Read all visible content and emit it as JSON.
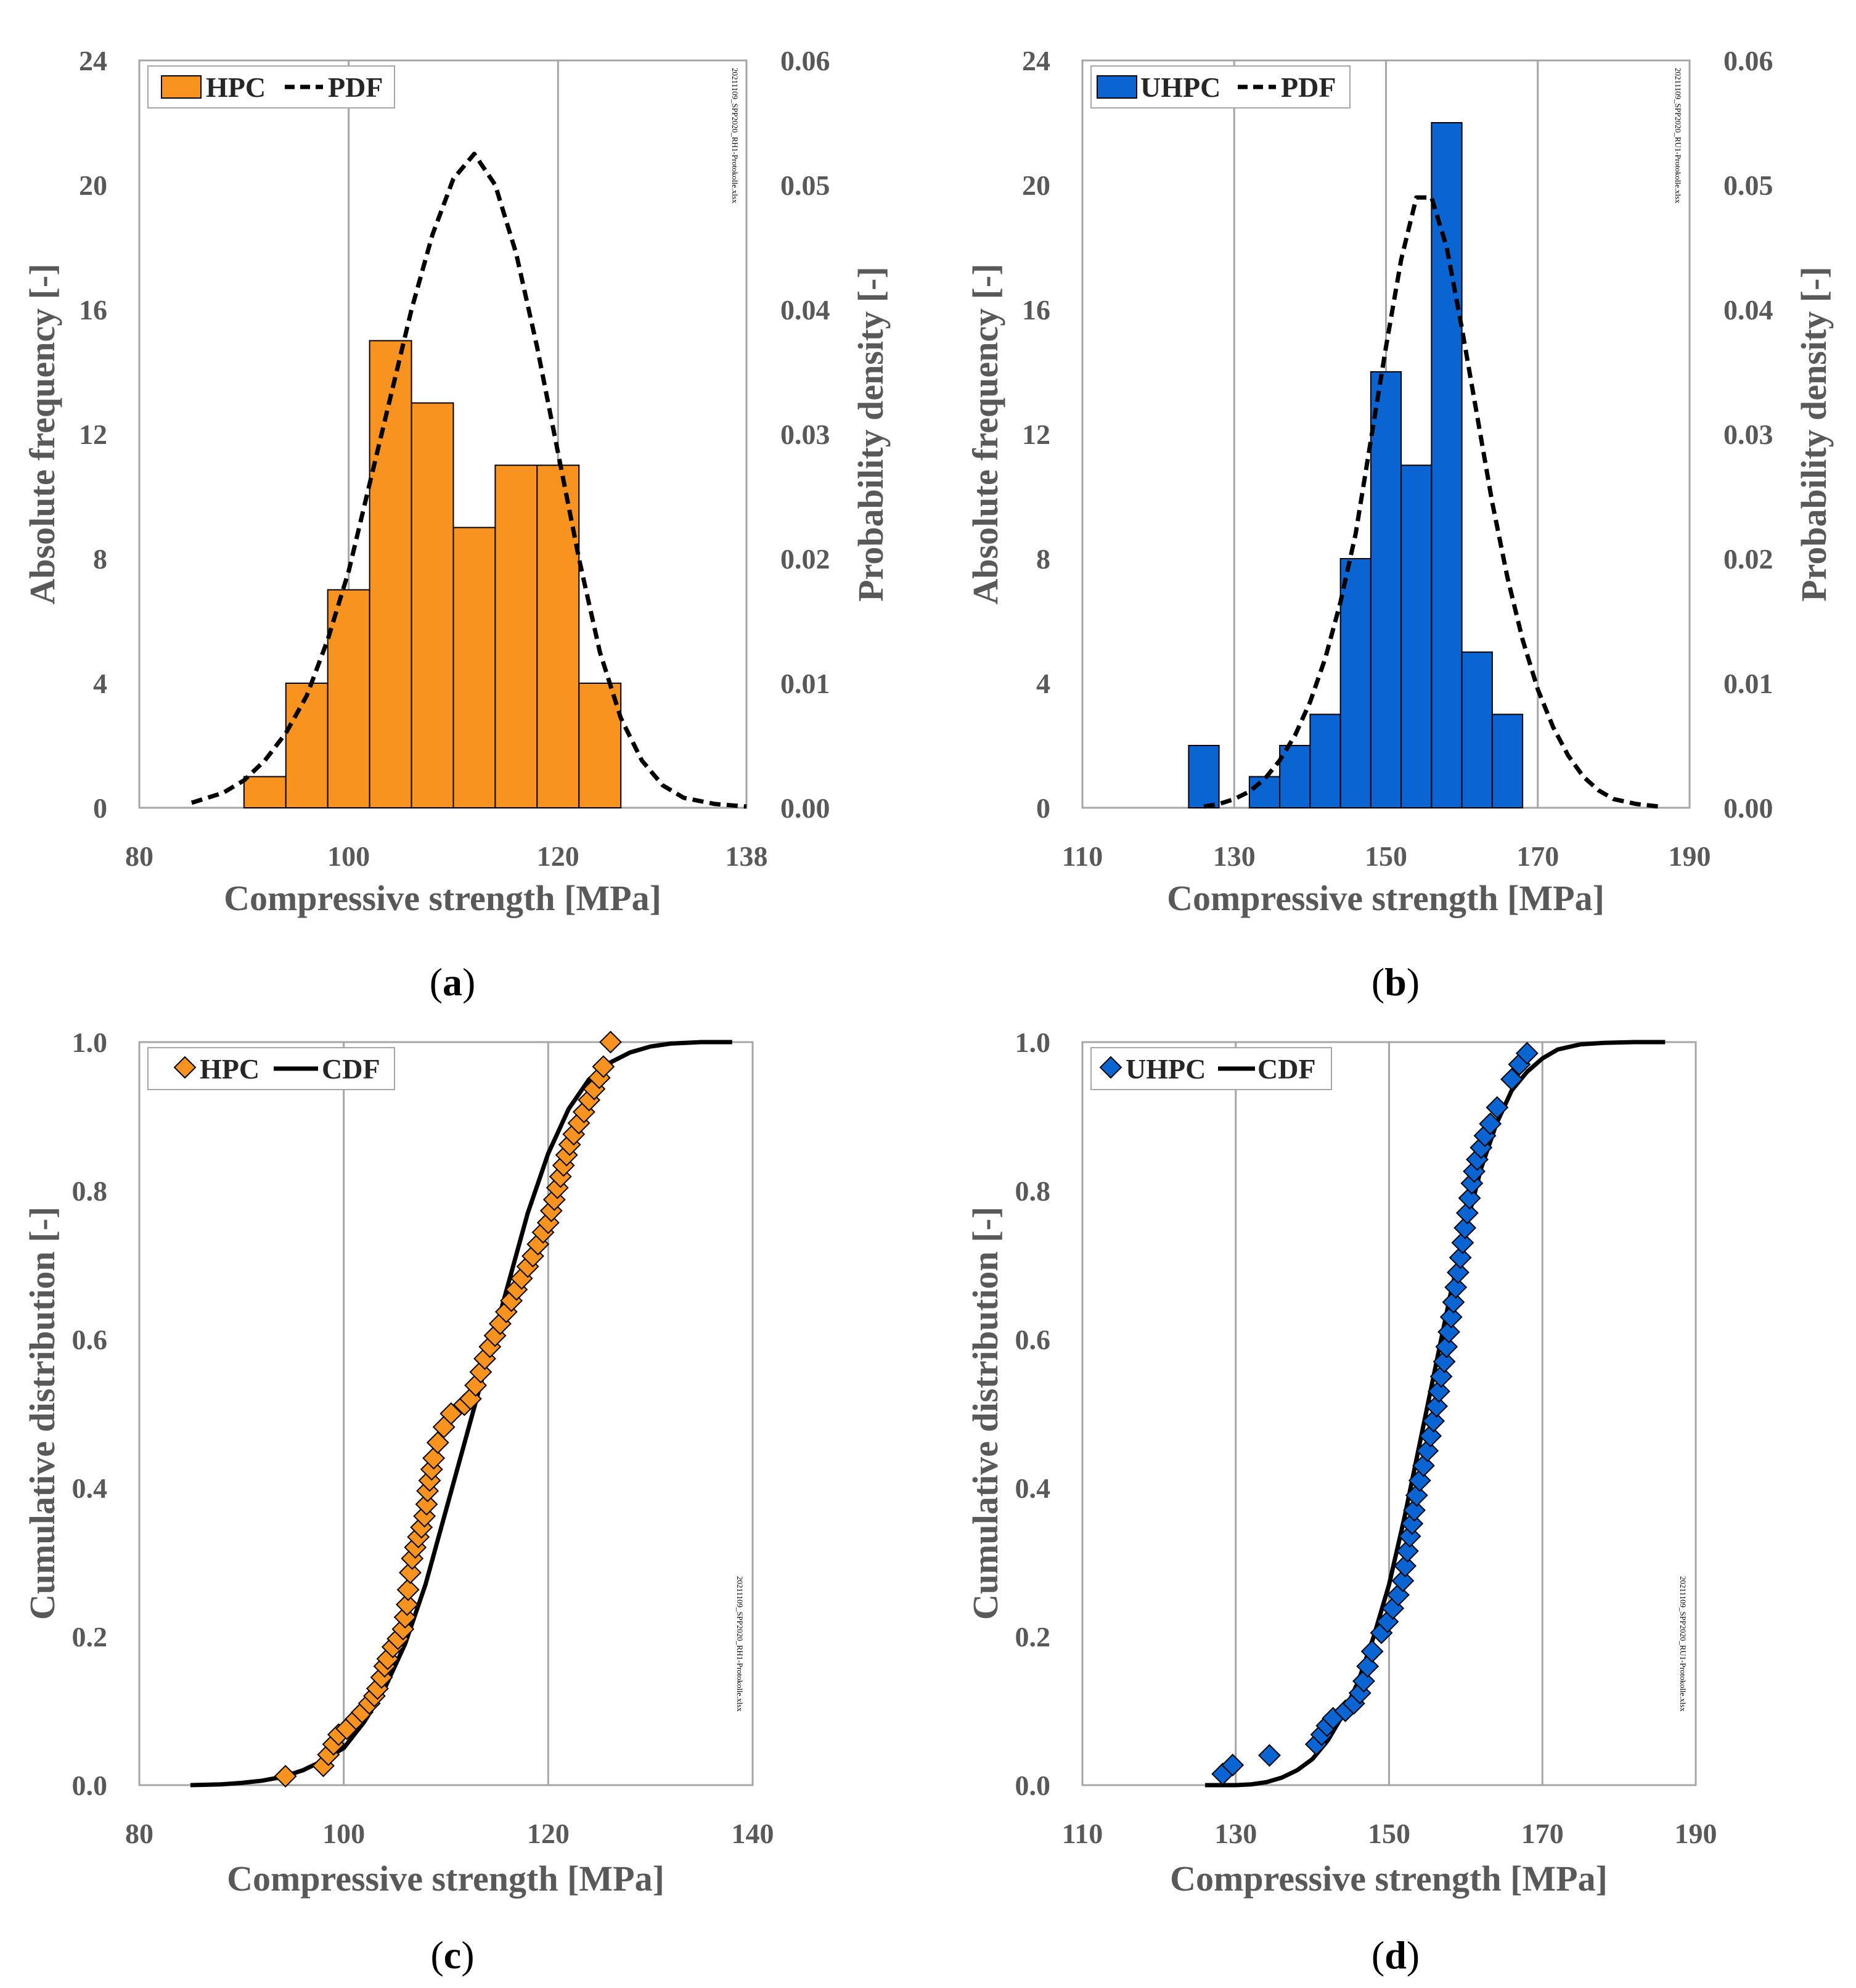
{
  "colors": {
    "hpc": "#F7931E",
    "uhpc": "#0A64D2",
    "line": "#000000",
    "grid": "#A6A6A6",
    "text": "#595959"
  },
  "panels": [
    {
      "id": "a",
      "caption": "a",
      "watermark": "20211109_SPP2020_RH1-Protokolle.xlsx",
      "xlabel": "Compressive strength [MPa]",
      "ylabel": "Absolute frequency [-]",
      "y2label": "Probability density [-]",
      "legend": [
        "HPC",
        "PDF"
      ]
    },
    {
      "id": "b",
      "caption": "b",
      "watermark": "20211109_SPP2020_RU1-Protokolle.xlsx",
      "xlabel": "Compressive strength [MPa]",
      "ylabel": "Absolute frequency [-]",
      "y2label": "Probability density [-]",
      "legend": [
        "UHPC",
        "PDF"
      ]
    },
    {
      "id": "c",
      "caption": "c",
      "watermark": "20211109_SPP2020_RH1-Protokolle.xlsx",
      "xlabel": "Compressive strength [MPa]",
      "ylabel": "Cumulative distribution [-]",
      "legend": [
        "HPC",
        "CDF"
      ]
    },
    {
      "id": "d",
      "caption": "d",
      "watermark": "20211109_SPP2020_RU1-Protokolle.xlsx",
      "xlabel": "Compressive strength [MPa]",
      "ylabel": "Cumulative distribution [-]",
      "legend": [
        "UHPC",
        "CDF"
      ]
    }
  ],
  "chart_data": [
    {
      "type": "bar",
      "panel": "a",
      "xlim": [
        80,
        138
      ],
      "xticks": [
        "80",
        "100",
        "120",
        "138"
      ],
      "ylim": [
        0,
        24
      ],
      "yticks": [
        "0",
        "4",
        "8",
        "12",
        "16",
        "20",
        "24"
      ],
      "y2lim": [
        0,
        0.06
      ],
      "y2ticks": [
        "0.00",
        "0.01",
        "0.02",
        "0.03",
        "0.04",
        "0.05",
        "0.06"
      ],
      "grid": "vertical",
      "legend_position": "top-left",
      "bins": [
        [
          90,
          94
        ],
        [
          94,
          98
        ],
        [
          98,
          102
        ],
        [
          102,
          106
        ],
        [
          106,
          110
        ],
        [
          110,
          114
        ],
        [
          114,
          118
        ],
        [
          118,
          122
        ],
        [
          122,
          126
        ]
      ],
      "series": [
        {
          "name": "HPC",
          "kind": "histogram",
          "values": [
            1,
            4,
            7,
            15,
            13,
            9,
            11,
            11,
            4
          ]
        },
        {
          "name": "PDF",
          "kind": "line",
          "axis": "y2",
          "style": "dashed",
          "x": [
            85,
            88,
            90,
            92,
            94,
            96,
            98,
            100,
            102,
            104,
            106,
            108,
            110,
            112,
            114,
            116,
            118,
            120,
            122,
            124,
            126,
            128,
            130,
            132,
            135,
            138
          ],
          "y": [
            0.0004,
            0.0012,
            0.0022,
            0.0038,
            0.006,
            0.009,
            0.0135,
            0.019,
            0.026,
            0.033,
            0.04,
            0.046,
            0.0505,
            0.0525,
            0.05,
            0.0445,
            0.037,
            0.0285,
            0.02,
            0.0125,
            0.0072,
            0.0038,
            0.0018,
            0.0008,
            0.0003,
            0.0001
          ]
        }
      ]
    },
    {
      "type": "bar",
      "panel": "b",
      "xlim": [
        110,
        190
      ],
      "xticks": [
        "110",
        "130",
        "150",
        "170",
        "190"
      ],
      "ylim": [
        0,
        24
      ],
      "yticks": [
        "0",
        "4",
        "8",
        "12",
        "16",
        "20",
        "24"
      ],
      "y2lim": [
        0,
        0.06
      ],
      "y2ticks": [
        "0.00",
        "0.01",
        "0.02",
        "0.03",
        "0.04",
        "0.05",
        "0.06"
      ],
      "grid": "vertical",
      "legend_position": "top-left",
      "bins": [
        [
          124,
          128
        ],
        [
          128,
          132
        ],
        [
          132,
          136
        ],
        [
          136,
          140
        ],
        [
          140,
          144
        ],
        [
          144,
          148
        ],
        [
          148,
          152
        ],
        [
          152,
          156
        ],
        [
          156,
          160
        ],
        [
          160,
          164
        ],
        [
          164,
          168
        ]
      ],
      "series": [
        {
          "name": "UHPC",
          "kind": "histogram",
          "values": [
            2,
            0,
            1,
            2,
            3,
            8,
            14,
            11,
            22,
            5,
            3
          ]
        },
        {
          "name": "PDF",
          "kind": "line",
          "axis": "y2",
          "style": "dashed",
          "x": [
            126,
            128,
            130,
            132,
            134,
            136,
            138,
            140,
            142,
            144,
            146,
            148,
            150,
            152,
            154,
            156,
            158,
            160,
            162,
            164,
            166,
            168,
            170,
            172,
            174,
            176,
            178,
            180,
            183,
            186
          ],
          "y": [
            0.0001,
            0.0003,
            0.0007,
            0.0013,
            0.0023,
            0.0038,
            0.0058,
            0.0085,
            0.012,
            0.0165,
            0.022,
            0.0295,
            0.037,
            0.044,
            0.049,
            0.049,
            0.045,
            0.0385,
            0.0315,
            0.0245,
            0.0185,
            0.0135,
            0.0095,
            0.0065,
            0.0042,
            0.0025,
            0.0014,
            0.0007,
            0.0003,
            0.0001
          ]
        }
      ]
    },
    {
      "type": "scatter",
      "panel": "c",
      "xlim": [
        80,
        140
      ],
      "xticks": [
        "80",
        "100",
        "120",
        "140"
      ],
      "ylim": [
        0,
        1
      ],
      "yticks": [
        "0.0",
        "0.2",
        "0.4",
        "0.6",
        "0.8",
        "1.0"
      ],
      "grid": "vertical",
      "legend_position": "top-left",
      "series": [
        {
          "name": "HPC",
          "kind": "points",
          "x": [
            94.3,
            98.0,
            98.5,
            99.0,
            99.5,
            100.3,
            101.2,
            101.8,
            102.5,
            103.0,
            103.3,
            103.7,
            104.0,
            104.3,
            104.8,
            105.3,
            105.8,
            106.0,
            106.2,
            106.3,
            106.5,
            106.7,
            107.0,
            107.3,
            107.6,
            107.9,
            108.1,
            108.2,
            108.4,
            108.6,
            108.8,
            109.2,
            109.8,
            110.5,
            111.8,
            112.4,
            112.9,
            113.4,
            113.8,
            114.3,
            114.8,
            115.3,
            115.9,
            116.4,
            116.9,
            117.4,
            118.0,
            118.5,
            119.0,
            119.5,
            120.0,
            120.3,
            120.6,
            120.9,
            121.2,
            121.5,
            121.8,
            122.1,
            122.5,
            123.0,
            123.5,
            124.0,
            124.5,
            125.0,
            125.4,
            126.1
          ],
          "y": [
            0.012,
            0.026,
            0.041,
            0.055,
            0.068,
            0.076,
            0.089,
            0.098,
            0.11,
            0.12,
            0.13,
            0.145,
            0.16,
            0.17,
            0.186,
            0.197,
            0.21,
            0.226,
            0.243,
            0.263,
            0.286,
            0.305,
            0.32,
            0.334,
            0.347,
            0.362,
            0.378,
            0.396,
            0.41,
            0.425,
            0.44,
            0.461,
            0.482,
            0.5,
            0.512,
            0.52,
            0.538,
            0.556,
            0.574,
            0.59,
            0.605,
            0.621,
            0.637,
            0.652,
            0.667,
            0.682,
            0.698,
            0.712,
            0.728,
            0.744,
            0.757,
            0.773,
            0.788,
            0.804,
            0.819,
            0.834,
            0.848,
            0.862,
            0.876,
            0.891,
            0.906,
            0.922,
            0.937,
            0.952,
            0.967,
            1.0
          ]
        },
        {
          "name": "CDF",
          "kind": "line",
          "style": "solid",
          "x": [
            85,
            88,
            90,
            92,
            94,
            96,
            98,
            100,
            102,
            104,
            106,
            108,
            110,
            112,
            114,
            116,
            118,
            120,
            122,
            124,
            126,
            128,
            130,
            132,
            135,
            138
          ],
          "y": [
            0.0,
            0.001,
            0.003,
            0.006,
            0.011,
            0.02,
            0.033,
            0.05,
            0.085,
            0.13,
            0.19,
            0.27,
            0.37,
            0.47,
            0.57,
            0.67,
            0.77,
            0.85,
            0.91,
            0.95,
            0.972,
            0.986,
            0.994,
            0.998,
            1.0,
            1.0
          ]
        }
      ]
    },
    {
      "type": "scatter",
      "panel": "d",
      "xlim": [
        110,
        190
      ],
      "xticks": [
        "110",
        "130",
        "150",
        "170",
        "190"
      ],
      "ylim": [
        0,
        1
      ],
      "yticks": [
        "0.0",
        "0.2",
        "0.4",
        "0.6",
        "0.8",
        "1.0"
      ],
      "grid": "vertical",
      "legend_position": "top-left",
      "series": [
        {
          "name": "UHPC",
          "kind": "points",
          "x": [
            128.3,
            129.6,
            134.4,
            140.5,
            141.2,
            141.9,
            142.7,
            144.3,
            145.4,
            146.2,
            146.7,
            147.2,
            147.8,
            149.0,
            149.8,
            150.5,
            151.2,
            151.8,
            152.1,
            152.4,
            152.7,
            153.0,
            153.3,
            153.6,
            154.0,
            154.5,
            155.0,
            155.4,
            155.8,
            156.2,
            156.5,
            156.8,
            157.2,
            157.5,
            157.8,
            158.1,
            158.4,
            158.7,
            159.0,
            159.3,
            159.6,
            159.9,
            160.2,
            160.5,
            160.8,
            161.1,
            161.5,
            162.0,
            162.5,
            163.2,
            164.1,
            166.0,
            167.0,
            168.0
          ],
          "y": [
            0.015,
            0.027,
            0.04,
            0.055,
            0.068,
            0.08,
            0.09,
            0.1,
            0.11,
            0.124,
            0.14,
            0.16,
            0.18,
            0.205,
            0.22,
            0.238,
            0.256,
            0.275,
            0.295,
            0.315,
            0.335,
            0.352,
            0.37,
            0.39,
            0.41,
            0.43,
            0.45,
            0.47,
            0.49,
            0.51,
            0.53,
            0.55,
            0.57,
            0.59,
            0.61,
            0.63,
            0.65,
            0.67,
            0.69,
            0.71,
            0.73,
            0.75,
            0.77,
            0.79,
            0.81,
            0.826,
            0.842,
            0.858,
            0.874,
            0.89,
            0.912,
            0.95,
            0.97,
            0.985
          ]
        },
        {
          "name": "CDF",
          "kind": "line",
          "style": "solid",
          "x": [
            126,
            128,
            130,
            132,
            134,
            136,
            138,
            140,
            142,
            144,
            146,
            148,
            150,
            152,
            154,
            156,
            158,
            160,
            162,
            164,
            166,
            168,
            170,
            172,
            175,
            178,
            182,
            186
          ],
          "y": [
            0.0,
            0.0,
            0.0,
            0.001,
            0.004,
            0.01,
            0.02,
            0.035,
            0.06,
            0.095,
            0.14,
            0.2,
            0.27,
            0.36,
            0.46,
            0.56,
            0.66,
            0.75,
            0.83,
            0.89,
            0.935,
            0.96,
            0.978,
            0.99,
            0.997,
            0.999,
            1.0,
            1.0
          ]
        }
      ]
    }
  ]
}
